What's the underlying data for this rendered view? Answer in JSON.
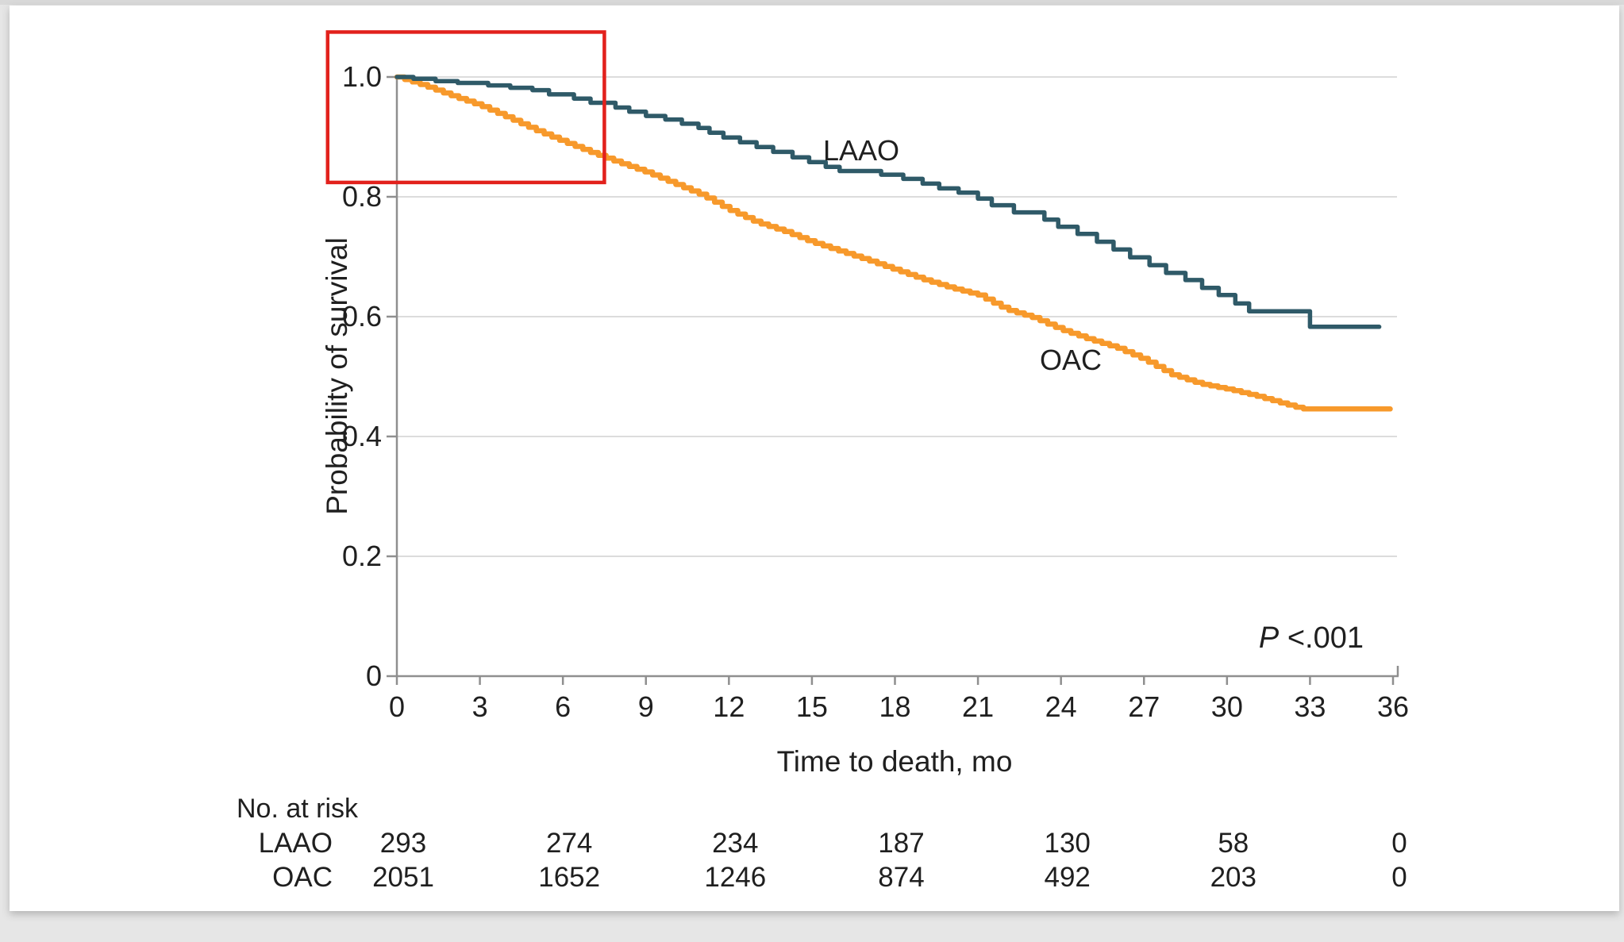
{
  "page": {
    "background": "#e6e6e6",
    "card_background": "#ffffff",
    "top_strip_color": "#d9d9d9"
  },
  "chart_data": {
    "type": "line",
    "subtype": "kaplan-meier-step",
    "title": "",
    "xlabel": "Time to death, mo",
    "ylabel": "Probability of survival",
    "xlim": [
      0,
      36
    ],
    "ylim": [
      0,
      1.0
    ],
    "x_ticks": [
      0,
      3,
      6,
      9,
      12,
      15,
      18,
      21,
      24,
      27,
      30,
      33,
      36
    ],
    "y_ticks": [
      {
        "value": 0,
        "label": "0"
      },
      {
        "value": 0.2,
        "label": "0.2"
      },
      {
        "value": 0.4,
        "label": "0.4"
      },
      {
        "value": 0.6,
        "label": "0.6"
      },
      {
        "value": 0.8,
        "label": "0.8"
      },
      {
        "value": 1.0,
        "label": "1.0"
      }
    ],
    "grid": "horizontal-only",
    "gridline_color": "#dcdcdc",
    "axis_color": "#8f8f8f",
    "p_label": {
      "italic": "P",
      "rest": " <.001"
    },
    "series": [
      {
        "name": "LAAO",
        "color": "#2f5a68",
        "stroke_width": 5.5,
        "render": "steps",
        "points": [
          [
            0,
            1.0
          ],
          [
            0.6,
            0.997
          ],
          [
            1.4,
            0.993
          ],
          [
            2.2,
            0.99
          ],
          [
            3.3,
            0.986
          ],
          [
            4.1,
            0.982
          ],
          [
            4.9,
            0.978
          ],
          [
            5.5,
            0.971
          ],
          [
            6.4,
            0.964
          ],
          [
            7.0,
            0.957
          ],
          [
            7.9,
            0.949
          ],
          [
            8.4,
            0.942
          ],
          [
            9.0,
            0.935
          ],
          [
            9.7,
            0.929
          ],
          [
            10.3,
            0.922
          ],
          [
            10.9,
            0.915
          ],
          [
            11.3,
            0.907
          ],
          [
            11.8,
            0.899
          ],
          [
            12.4,
            0.891
          ],
          [
            13.0,
            0.883
          ],
          [
            13.6,
            0.875
          ],
          [
            14.3,
            0.866
          ],
          [
            14.9,
            0.858
          ],
          [
            15.5,
            0.85
          ],
          [
            16.0,
            0.843
          ],
          [
            17.5,
            0.837
          ],
          [
            18.3,
            0.83
          ],
          [
            19.0,
            0.822
          ],
          [
            19.6,
            0.814
          ],
          [
            20.3,
            0.807
          ],
          [
            21.0,
            0.797
          ],
          [
            21.5,
            0.786
          ],
          [
            22.3,
            0.774
          ],
          [
            23.4,
            0.762
          ],
          [
            23.9,
            0.75
          ],
          [
            24.6,
            0.738
          ],
          [
            25.3,
            0.725
          ],
          [
            25.9,
            0.712
          ],
          [
            26.5,
            0.699
          ],
          [
            27.2,
            0.686
          ],
          [
            27.8,
            0.673
          ],
          [
            28.5,
            0.661
          ],
          [
            29.1,
            0.648
          ],
          [
            29.7,
            0.636
          ],
          [
            30.3,
            0.622
          ],
          [
            30.8,
            0.609
          ],
          [
            33.0,
            0.583
          ],
          [
            35.5,
            0.583
          ]
        ]
      },
      {
        "name": "OAC",
        "color": "#f7992b",
        "stroke_width": 6.5,
        "render": "dense-steps",
        "step_interval_months": 0.28,
        "points": [
          [
            0,
            1.0
          ],
          [
            1,
            0.985
          ],
          [
            2,
            0.968
          ],
          [
            3,
            0.952
          ],
          [
            4,
            0.932
          ],
          [
            5,
            0.911
          ],
          [
            6,
            0.892
          ],
          [
            7,
            0.874
          ],
          [
            8,
            0.857
          ],
          [
            9,
            0.841
          ],
          [
            10,
            0.822
          ],
          [
            11,
            0.803
          ],
          [
            12,
            0.778
          ],
          [
            13,
            0.757
          ],
          [
            14,
            0.742
          ],
          [
            15,
            0.724
          ],
          [
            16,
            0.709
          ],
          [
            17,
            0.694
          ],
          [
            18,
            0.678
          ],
          [
            19,
            0.662
          ],
          [
            20,
            0.648
          ],
          [
            21,
            0.636
          ],
          [
            22,
            0.612
          ],
          [
            23,
            0.598
          ],
          [
            24,
            0.578
          ],
          [
            25,
            0.562
          ],
          [
            26,
            0.548
          ],
          [
            27,
            0.528
          ],
          [
            28,
            0.503
          ],
          [
            29,
            0.488
          ],
          [
            30,
            0.479
          ],
          [
            31,
            0.468
          ],
          [
            32,
            0.455
          ],
          [
            32.7,
            0.446
          ],
          [
            35.9,
            0.446
          ]
        ]
      }
    ],
    "annotation_box": {
      "color": "#e2211c",
      "x_months": [
        -2.5,
        7.5
      ],
      "y_values": [
        0.824,
        1.075
      ]
    }
  },
  "risk_table": {
    "title": "No. at risk",
    "time_points": [
      0,
      6,
      12,
      18,
      24,
      30,
      36
    ],
    "rows": [
      {
        "label": "LAAO",
        "values": [
          "293",
          "274",
          "234",
          "187",
          "130",
          "58",
          "0"
        ]
      },
      {
        "label": "OAC",
        "values": [
          "2051",
          "1652",
          "1246",
          "874",
          "492",
          "203",
          "0"
        ]
      }
    ]
  }
}
